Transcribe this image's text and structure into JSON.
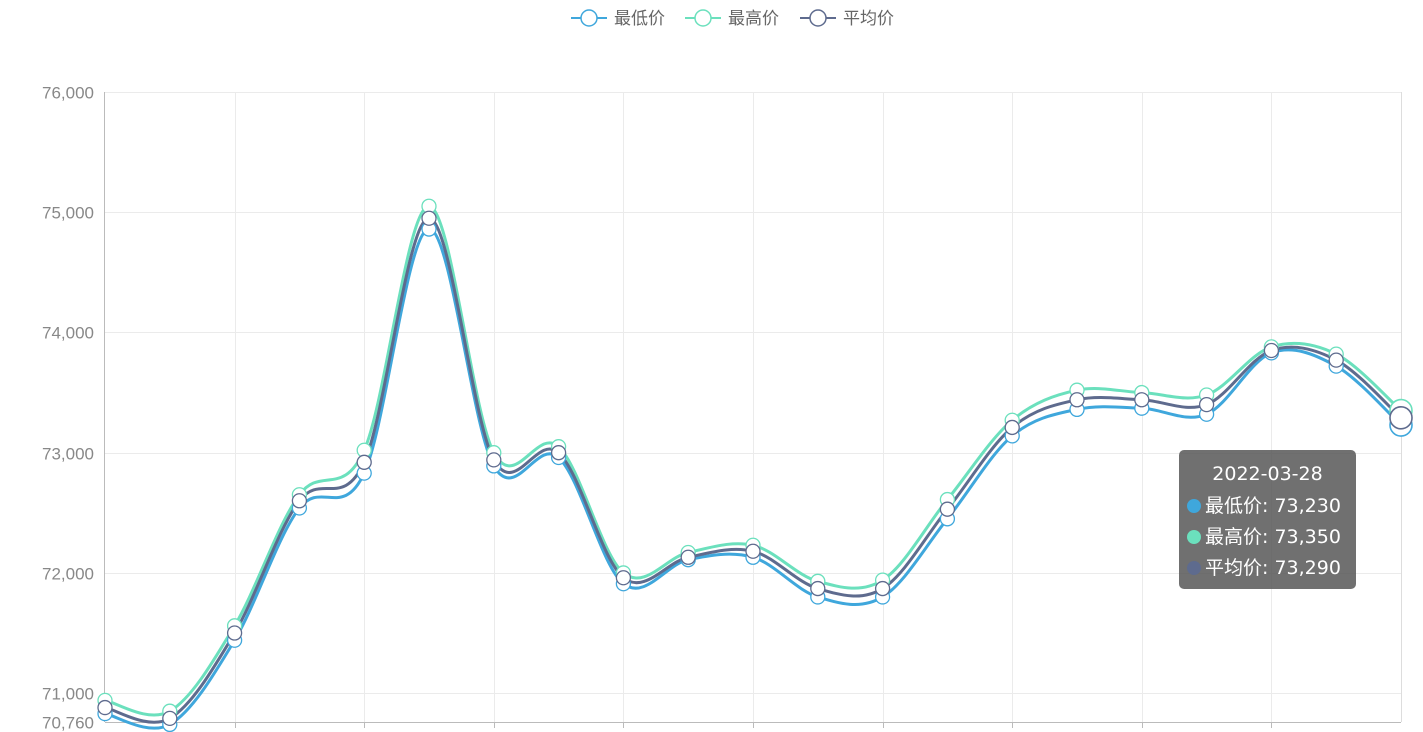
{
  "chart_data": {
    "type": "line",
    "smooth": true,
    "legend_position": "top-center",
    "grid": true,
    "ylim": [
      70760,
      76000
    ],
    "y_ticks": [
      {
        "value": 70760,
        "label": "70,760"
      },
      {
        "value": 71000,
        "label": "71,000"
      },
      {
        "value": 72000,
        "label": "72,000"
      },
      {
        "value": 73000,
        "label": "73,000"
      },
      {
        "value": 74000,
        "label": "74,000"
      },
      {
        "value": 75000,
        "label": "75,000"
      },
      {
        "value": 76000,
        "label": "76,000"
      }
    ],
    "x_count": 21,
    "series": [
      {
        "name": "最低价",
        "color": "#3fa7dc",
        "values": [
          70830,
          70740,
          71440,
          72540,
          72830,
          74860,
          72890,
          72960,
          71910,
          72110,
          72130,
          71800,
          71800,
          72450,
          73140,
          73360,
          73370,
          73320,
          73830,
          73720,
          73230
        ]
      },
      {
        "name": "最高价",
        "color": "#6be0bd",
        "values": [
          70940,
          70850,
          71560,
          72650,
          73020,
          75050,
          73000,
          73050,
          72000,
          72170,
          72230,
          71930,
          71940,
          72610,
          73270,
          73520,
          73500,
          73480,
          73880,
          73820,
          73350
        ]
      },
      {
        "name": "平均价",
        "color": "#5e6b8e",
        "values": [
          70880,
          70790,
          71500,
          72600,
          72920,
          74950,
          72940,
          73000,
          71960,
          72130,
          72180,
          71870,
          71870,
          72530,
          73210,
          73440,
          73440,
          73400,
          73850,
          73770,
          73290
        ]
      }
    ]
  },
  "tooltip": {
    "title": "2022-03-28",
    "rows": [
      {
        "label": "最低价: 73,230",
        "color": "#3fa7dc"
      },
      {
        "label": "最高价: 73,350",
        "color": "#6be0bd"
      },
      {
        "label": "平均价: 73,290",
        "color": "#5e6b8e"
      }
    ]
  }
}
